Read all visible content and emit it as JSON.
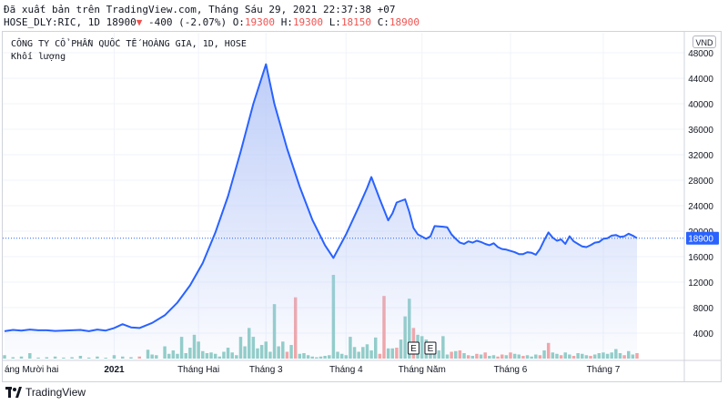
{
  "header": {
    "line1": "Đã xuất bản trên TradingView.com, Tháng Sáu 29, 2021 22:37:38 +07",
    "symbol": "HOSE_DLY:RIC, 1D",
    "last": "18900",
    "change_arrow": "▼",
    "change": "-400 (-2.07%)",
    "o_label": "O:",
    "o_value": "19300",
    "h_label": "H:",
    "h_value": "19300",
    "l_label": "L:",
    "l_value": "18150",
    "c_label": "C:",
    "c_value": "18900"
  },
  "legend": {
    "title": "CÔNG TY CỔ PHẦN QUỐC TẾ HOÀNG GIA, 1D, HOSE",
    "volume_label": "Khối lượng"
  },
  "currency_badge": "VND",
  "footer": {
    "brand": "TradingView"
  },
  "colors": {
    "line": "#2962ff",
    "area_top": "#b7c8f8",
    "vol_up": "#8fcdc6",
    "vol_down": "#f4a3a3",
    "last_price_label_bg": "#2962ff",
    "grid": "#f0f3fa"
  },
  "chart_data": {
    "type": "area",
    "y_ticks": [
      4000,
      8000,
      12000,
      16000,
      20000,
      24000,
      28000,
      32000,
      36000,
      40000,
      44000,
      48000
    ],
    "ylim": [
      1500,
      48800
    ],
    "last_price": 18900,
    "x_labels": [
      {
        "label": "áng Mười hai",
        "x": 0
      },
      {
        "label": "2021",
        "x": 26
      },
      {
        "label": "Tháng Hai",
        "x": 46
      },
      {
        "label": "Tháng 3",
        "x": 62
      },
      {
        "label": "Tháng 4",
        "x": 81
      },
      {
        "label": "Tháng Năm",
        "x": 99
      },
      {
        "label": "Tháng 6",
        "x": 120
      },
      {
        "label": "Tháng 7",
        "x": 142
      }
    ],
    "events": [
      {
        "label": "E",
        "x": 97
      },
      {
        "label": "E",
        "x": 101
      }
    ],
    "price": [
      [
        0,
        4300
      ],
      [
        2,
        4500
      ],
      [
        4,
        4400
      ],
      [
        6,
        4550
      ],
      [
        8,
        4450
      ],
      [
        10,
        4450
      ],
      [
        12,
        4350
      ],
      [
        14,
        4400
      ],
      [
        16,
        4450
      ],
      [
        18,
        4500
      ],
      [
        20,
        4300
      ],
      [
        22,
        4550
      ],
      [
        24,
        4400
      ],
      [
        26,
        4800
      ],
      [
        28,
        5400
      ],
      [
        30,
        4900
      ],
      [
        32,
        4800
      ],
      [
        35,
        5600
      ],
      [
        38,
        6800
      ],
      [
        41,
        8800
      ],
      [
        44,
        11500
      ],
      [
        47,
        15000
      ],
      [
        50,
        19800
      ],
      [
        53,
        25500
      ],
      [
        56,
        32500
      ],
      [
        59,
        40000
      ],
      [
        62,
        46200
      ],
      [
        64,
        40000
      ],
      [
        67,
        33000
      ],
      [
        70,
        27000
      ],
      [
        73,
        21800
      ],
      [
        76,
        17800
      ],
      [
        78,
        15800
      ],
      [
        81,
        19500
      ],
      [
        84,
        23800
      ],
      [
        86,
        26800
      ],
      [
        87,
        28500
      ],
      [
        89,
        25000
      ],
      [
        91,
        21700
      ],
      [
        92,
        22800
      ],
      [
        93,
        24500
      ],
      [
        95,
        25000
      ],
      [
        96,
        23000
      ],
      [
        97,
        20500
      ],
      [
        98,
        19500
      ],
      [
        100,
        18800
      ],
      [
        101,
        19200
      ],
      [
        102,
        20800
      ],
      [
        104,
        20700
      ],
      [
        105,
        20600
      ],
      [
        106,
        19500
      ],
      [
        107,
        18800
      ],
      [
        108,
        18200
      ],
      [
        109,
        18000
      ],
      [
        110,
        18400
      ],
      [
        111,
        18200
      ],
      [
        112,
        18500
      ],
      [
        113,
        18300
      ],
      [
        114,
        18000
      ],
      [
        115,
        17800
      ],
      [
        116,
        18100
      ],
      [
        117,
        17500
      ],
      [
        118,
        17200
      ],
      [
        119,
        17100
      ],
      [
        120,
        16900
      ],
      [
        121,
        16700
      ],
      [
        122,
        16400
      ],
      [
        123,
        16400
      ],
      [
        124,
        16700
      ],
      [
        125,
        16600
      ],
      [
        126,
        16300
      ],
      [
        127,
        17200
      ],
      [
        128,
        18600
      ],
      [
        129,
        19800
      ],
      [
        130,
        19000
      ],
      [
        131,
        18500
      ],
      [
        132,
        18700
      ],
      [
        133,
        18000
      ],
      [
        134,
        19200
      ],
      [
        135,
        18400
      ],
      [
        136,
        18000
      ],
      [
        137,
        17600
      ],
      [
        138,
        17500
      ],
      [
        139,
        17800
      ],
      [
        140,
        18200
      ],
      [
        141,
        18300
      ],
      [
        142,
        18800
      ],
      [
        143,
        18900
      ],
      [
        144,
        19300
      ],
      [
        145,
        19400
      ],
      [
        146,
        19100
      ],
      [
        147,
        19200
      ],
      [
        148,
        19600
      ],
      [
        149,
        19300
      ],
      [
        150,
        18900
      ]
    ],
    "volume_scale_max": 16000,
    "volume": [
      [
        0,
        500,
        "u"
      ],
      [
        2,
        200,
        "u"
      ],
      [
        4,
        300,
        "u"
      ],
      [
        6,
        800,
        "u"
      ],
      [
        8,
        150,
        "u"
      ],
      [
        10,
        200,
        "u"
      ],
      [
        12,
        300,
        "u"
      ],
      [
        14,
        150,
        "u"
      ],
      [
        16,
        200,
        "u"
      ],
      [
        18,
        400,
        "u"
      ],
      [
        20,
        150,
        "u"
      ],
      [
        22,
        300,
        "u"
      ],
      [
        24,
        100,
        "u"
      ],
      [
        26,
        500,
        "u"
      ],
      [
        28,
        300,
        "u"
      ],
      [
        30,
        200,
        "u"
      ],
      [
        32,
        300,
        "d"
      ],
      [
        34,
        1300,
        "u"
      ],
      [
        35,
        600,
        "u"
      ],
      [
        36,
        500,
        "u"
      ],
      [
        38,
        1800,
        "u"
      ],
      [
        39,
        700,
        "u"
      ],
      [
        40,
        1200,
        "u"
      ],
      [
        41,
        700,
        "u"
      ],
      [
        42,
        3200,
        "u"
      ],
      [
        43,
        800,
        "u"
      ],
      [
        44,
        1600,
        "u"
      ],
      [
        45,
        3500,
        "u"
      ],
      [
        46,
        2500,
        "u"
      ],
      [
        47,
        1100,
        "u"
      ],
      [
        48,
        800,
        "u"
      ],
      [
        49,
        900,
        "u"
      ],
      [
        50,
        700,
        "u"
      ],
      [
        51,
        300,
        "u"
      ],
      [
        52,
        1000,
        "u"
      ],
      [
        53,
        1600,
        "u"
      ],
      [
        54,
        900,
        "u"
      ],
      [
        55,
        500,
        "u"
      ],
      [
        56,
        3200,
        "u"
      ],
      [
        57,
        1800,
        "u"
      ],
      [
        58,
        4500,
        "u"
      ],
      [
        59,
        3200,
        "u"
      ],
      [
        60,
        1500,
        "u"
      ],
      [
        61,
        2000,
        "u"
      ],
      [
        62,
        2500,
        "u"
      ],
      [
        63,
        1000,
        "u"
      ],
      [
        64,
        8000,
        "u"
      ],
      [
        65,
        1800,
        "u"
      ],
      [
        66,
        2500,
        "u"
      ],
      [
        67,
        1000,
        "d"
      ],
      [
        68,
        2000,
        "u"
      ],
      [
        69,
        9000,
        "d"
      ],
      [
        70,
        700,
        "u"
      ],
      [
        71,
        800,
        "u"
      ],
      [
        72,
        500,
        "u"
      ],
      [
        73,
        300,
        "u"
      ],
      [
        74,
        200,
        "u"
      ],
      [
        75,
        300,
        "u"
      ],
      [
        76,
        400,
        "u"
      ],
      [
        77,
        500,
        "u"
      ],
      [
        78,
        12300,
        "u"
      ],
      [
        79,
        1000,
        "u"
      ],
      [
        80,
        700,
        "u"
      ],
      [
        81,
        500,
        "u"
      ],
      [
        82,
        3200,
        "u"
      ],
      [
        83,
        1700,
        "u"
      ],
      [
        84,
        1000,
        "u"
      ],
      [
        85,
        1700,
        "u"
      ],
      [
        86,
        2100,
        "u"
      ],
      [
        87,
        1200,
        "u"
      ],
      [
        88,
        3100,
        "u"
      ],
      [
        89,
        700,
        "d"
      ],
      [
        90,
        9200,
        "d"
      ],
      [
        91,
        1500,
        "u"
      ],
      [
        92,
        1500,
        "u"
      ],
      [
        93,
        1600,
        "d"
      ],
      [
        94,
        2800,
        "u"
      ],
      [
        95,
        6200,
        "u"
      ],
      [
        96,
        8800,
        "u"
      ],
      [
        97,
        4500,
        "d"
      ],
      [
        98,
        3500,
        "u"
      ],
      [
        99,
        3300,
        "u"
      ],
      [
        100,
        2800,
        "u"
      ],
      [
        101,
        2200,
        "u"
      ],
      [
        102,
        1900,
        "u"
      ],
      [
        103,
        1200,
        "u"
      ],
      [
        104,
        3300,
        "u"
      ],
      [
        105,
        600,
        "u"
      ],
      [
        106,
        1000,
        "d"
      ],
      [
        107,
        1100,
        "u"
      ],
      [
        108,
        1200,
        "d"
      ],
      [
        109,
        800,
        "u"
      ],
      [
        110,
        500,
        "d"
      ],
      [
        111,
        400,
        "u"
      ],
      [
        112,
        700,
        "d"
      ],
      [
        113,
        600,
        "u"
      ],
      [
        114,
        900,
        "d"
      ],
      [
        115,
        400,
        "u"
      ],
      [
        116,
        500,
        "u"
      ],
      [
        117,
        300,
        "d"
      ],
      [
        118,
        600,
        "d"
      ],
      [
        119,
        500,
        "u"
      ],
      [
        120,
        900,
        "d"
      ],
      [
        121,
        700,
        "u"
      ],
      [
        122,
        600,
        "u"
      ],
      [
        123,
        400,
        "d"
      ],
      [
        124,
        500,
        "u"
      ],
      [
        125,
        300,
        "u"
      ],
      [
        126,
        600,
        "u"
      ],
      [
        127,
        500,
        "d"
      ],
      [
        128,
        1200,
        "u"
      ],
      [
        129,
        2300,
        "d"
      ],
      [
        130,
        900,
        "u"
      ],
      [
        131,
        700,
        "u"
      ],
      [
        132,
        500,
        "d"
      ],
      [
        133,
        900,
        "u"
      ],
      [
        134,
        600,
        "u"
      ],
      [
        135,
        400,
        "d"
      ],
      [
        136,
        800,
        "u"
      ],
      [
        137,
        700,
        "u"
      ],
      [
        138,
        500,
        "u"
      ],
      [
        139,
        400,
        "d"
      ],
      [
        140,
        600,
        "u"
      ],
      [
        141,
        800,
        "u"
      ],
      [
        142,
        900,
        "u"
      ],
      [
        143,
        700,
        "u"
      ],
      [
        144,
        900,
        "u"
      ],
      [
        145,
        1400,
        "u"
      ],
      [
        146,
        800,
        "u"
      ],
      [
        147,
        500,
        "d"
      ],
      [
        148,
        1100,
        "u"
      ],
      [
        149,
        600,
        "u"
      ],
      [
        150,
        800,
        "d"
      ]
    ]
  }
}
